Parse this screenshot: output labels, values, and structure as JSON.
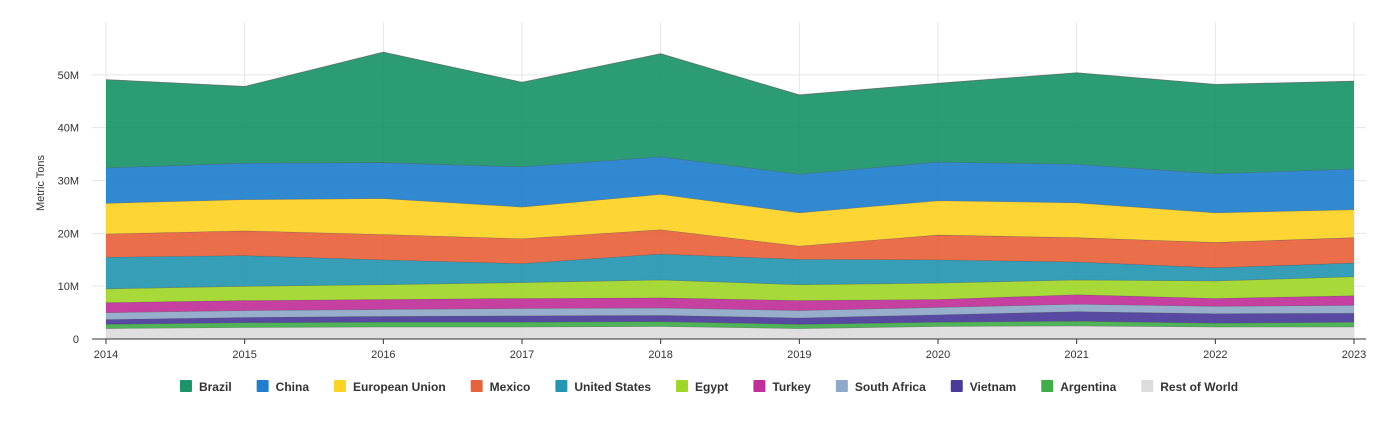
{
  "chart_data": {
    "type": "area",
    "stacked": true,
    "title": "",
    "xlabel": "",
    "ylabel": "Metric Tons",
    "x": [
      "2014",
      "2015",
      "2016",
      "2017",
      "2018",
      "2019",
      "2020",
      "2021",
      "2022",
      "2023"
    ],
    "ylim": [
      0,
      60000000
    ],
    "yticks": [
      0,
      10000000,
      20000000,
      30000000,
      40000000,
      50000000
    ],
    "ytick_labels": [
      "0",
      "10M",
      "20M",
      "30M",
      "40M",
      "50M"
    ],
    "grid": true,
    "legend_position": "bottom",
    "series": [
      {
        "name": "Rest of World",
        "color": "#dcdcdc",
        "values": [
          2000000,
          2200000,
          2300000,
          2300000,
          2400000,
          2000000,
          2400000,
          2500000,
          2300000,
          2300000
        ]
      },
      {
        "name": "Argentina",
        "color": "#3fae49",
        "values": [
          800000,
          900000,
          900000,
          900000,
          900000,
          800000,
          800000,
          900000,
          700000,
          900000
        ]
      },
      {
        "name": "Vietnam",
        "color": "#4a3b9a",
        "values": [
          900000,
          1000000,
          1100000,
          1200000,
          1200000,
          1200000,
          1400000,
          1800000,
          1800000,
          1700000
        ]
      },
      {
        "name": "South Africa",
        "color": "#8ea8c9",
        "values": [
          1300000,
          1300000,
          1300000,
          1400000,
          1400000,
          1400000,
          1400000,
          1400000,
          1400000,
          1500000
        ]
      },
      {
        "name": "Turkey",
        "color": "#c1309a",
        "values": [
          1900000,
          1900000,
          1900000,
          1900000,
          1900000,
          1900000,
          1500000,
          1800000,
          1500000,
          1800000
        ]
      },
      {
        "name": "Egypt",
        "color": "#9fd627",
        "values": [
          2600000,
          2700000,
          2800000,
          3000000,
          3400000,
          3000000,
          3100000,
          2800000,
          3300000,
          3600000
        ]
      },
      {
        "name": "United States",
        "color": "#2596b1",
        "values": [
          6000000,
          5800000,
          4700000,
          3600000,
          4900000,
          4800000,
          4400000,
          3400000,
          2500000,
          2600000
        ]
      },
      {
        "name": "Mexico",
        "color": "#e8623b",
        "values": [
          4400000,
          4700000,
          4800000,
          4700000,
          4600000,
          2500000,
          4700000,
          4600000,
          4800000,
          4800000
        ]
      },
      {
        "name": "European Union",
        "color": "#fdd324",
        "values": [
          5800000,
          5900000,
          6800000,
          6000000,
          6700000,
          6300000,
          6500000,
          6600000,
          5600000,
          5300000
        ]
      },
      {
        "name": "China",
        "color": "#1f7fce",
        "values": [
          6700000,
          6900000,
          6800000,
          7600000,
          7100000,
          7300000,
          7300000,
          7300000,
          7400000,
          7700000
        ]
      },
      {
        "name": "Brazil",
        "color": "#1a9468",
        "values": [
          16700000,
          14500000,
          20900000,
          16000000,
          19500000,
          15000000,
          14900000,
          17300000,
          16900000,
          16600000
        ]
      }
    ],
    "legend_order": [
      "Brazil",
      "China",
      "European Union",
      "Mexico",
      "United States",
      "Egypt",
      "Turkey",
      "South Africa",
      "Vietnam",
      "Argentina",
      "Rest of World"
    ]
  }
}
